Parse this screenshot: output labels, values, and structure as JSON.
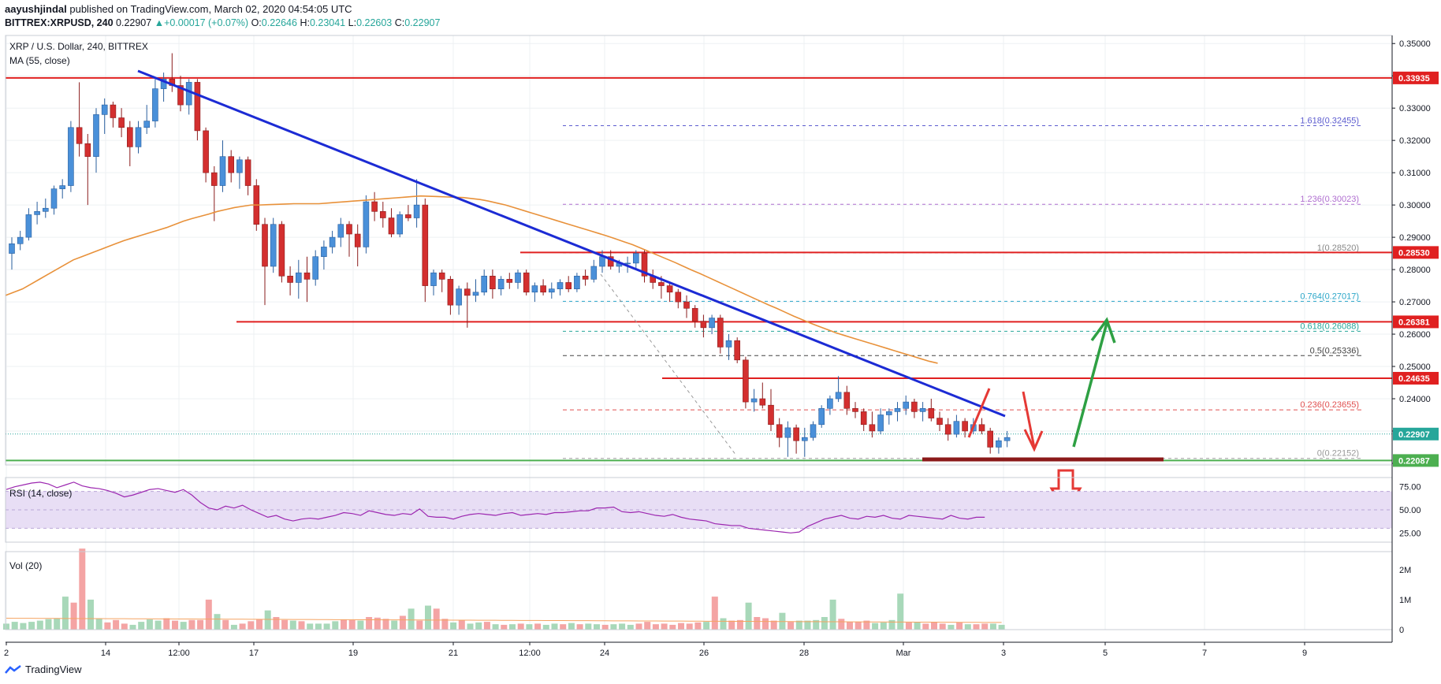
{
  "header": {
    "author": "aayushjindal",
    "published_text": " published on TradingView.com, March 02, 2020 04:54:05 UTC",
    "symbol": "BITTREX:XRPUSD, 240",
    "last": "0.22907",
    "change": "+0.00017 (+0.07%)",
    "open_label": "O:",
    "open": "0.22646",
    "high_label": "H:",
    "high": "0.23041",
    "low_label": "L:",
    "low": "0.22603",
    "close_label": "C:",
    "close": "0.22907"
  },
  "legend": {
    "title": "XRP / U.S. Dollar, 240, BITTREX",
    "ma": "MA (55, close)",
    "rsi": "RSI (14, close)",
    "vol": "Vol (20)"
  },
  "footer": {
    "brand": "TradingView",
    "logo_icon": "tradingview-logo-icon"
  },
  "colors": {
    "up": "#4a90d9",
    "down": "#d32f2f",
    "ma": "#e8913a",
    "trend": "#1c2bd4",
    "hline": "#e02020",
    "support": "#4caf50",
    "rsi_line": "#9c27b0",
    "rsi_band": "#e8def5"
  },
  "chart_data": {
    "type": "candlestick",
    "price_axis": {
      "ticks": [
        "0.35000",
        "0.34000",
        "0.33000",
        "0.32000",
        "0.31000",
        "0.30000",
        "0.29000",
        "0.28000",
        "0.27000",
        "0.26000",
        "0.25000",
        "0.24000",
        "0.23000",
        "0.22000"
      ],
      "ylim": [
        0.2195,
        0.3525
      ]
    },
    "time_axis": {
      "labels": [
        "2",
        "14",
        "12:00",
        "17",
        "19",
        "21",
        "12:00",
        "24",
        "26",
        "28",
        "Mar",
        "3",
        "5",
        "7",
        "9"
      ]
    },
    "price_labels": [
      {
        "value": "0.33935",
        "price": 0.33935,
        "color": "#e02020"
      },
      {
        "value": "0.28530",
        "price": 0.2853,
        "color": "#e02020"
      },
      {
        "value": "0.26381",
        "price": 0.26381,
        "color": "#e02020"
      },
      {
        "value": "0.24635",
        "price": 0.24635,
        "color": "#e02020"
      },
      {
        "value": "0.22907",
        "price": 0.22907,
        "color": "#26a69a"
      },
      {
        "value": "0.22087",
        "price": 0.22087,
        "color": "#4caf50"
      }
    ],
    "fib_levels": [
      {
        "label": "1.618(0.32455)",
        "price": 0.32455,
        "color": "#5c5ccf",
        "dash": "4,4"
      },
      {
        "label": "1.236(0.30023)",
        "price": 0.30023,
        "color": "#b06fd0",
        "dash": "4,4"
      },
      {
        "label": "1(0.28520)",
        "price": 0.2852,
        "color": "#888888",
        "dash": "4,4"
      },
      {
        "label": "0.764(0.27017)",
        "price": 0.27017,
        "color": "#2aa6c8",
        "dash": "4,4"
      },
      {
        "label": "0.618(0.26088)",
        "price": 0.26088,
        "color": "#26a69a",
        "dash": "4,4"
      },
      {
        "label": "0.5(0.25336)",
        "price": 0.25336,
        "color": "#444444",
        "dash": "5,4"
      },
      {
        "label": "0.236(0.23655)",
        "price": 0.23655,
        "color": "#e05050",
        "dash": "5,4"
      },
      {
        "label": "0(0.22152)",
        "price": 0.22152,
        "color": "#999999",
        "dash": "4,4"
      }
    ],
    "candles": [
      [
        0.285,
        0.29,
        0.28,
        0.288
      ],
      [
        0.288,
        0.292,
        0.286,
        0.29
      ],
      [
        0.29,
        0.299,
        0.289,
        0.297
      ],
      [
        0.297,
        0.301,
        0.294,
        0.298
      ],
      [
        0.298,
        0.302,
        0.296,
        0.299
      ],
      [
        0.299,
        0.306,
        0.297,
        0.305
      ],
      [
        0.305,
        0.308,
        0.302,
        0.306
      ],
      [
        0.306,
        0.326,
        0.304,
        0.324
      ],
      [
        0.324,
        0.338,
        0.315,
        0.319
      ],
      [
        0.319,
        0.322,
        0.3,
        0.315
      ],
      [
        0.315,
        0.33,
        0.31,
        0.328
      ],
      [
        0.328,
        0.333,
        0.322,
        0.331
      ],
      [
        0.331,
        0.332,
        0.324,
        0.327
      ],
      [
        0.327,
        0.33,
        0.321,
        0.324
      ],
      [
        0.324,
        0.326,
        0.312,
        0.318
      ],
      [
        0.318,
        0.326,
        0.316,
        0.324
      ],
      [
        0.324,
        0.331,
        0.322,
        0.326
      ],
      [
        0.326,
        0.339,
        0.324,
        0.336
      ],
      [
        0.336,
        0.341,
        0.332,
        0.339
      ],
      [
        0.339,
        0.347,
        0.335,
        0.337
      ],
      [
        0.337,
        0.34,
        0.329,
        0.331
      ],
      [
        0.331,
        0.339,
        0.328,
        0.338
      ],
      [
        0.338,
        0.339,
        0.32,
        0.323
      ],
      [
        0.323,
        0.324,
        0.307,
        0.31
      ],
      [
        0.31,
        0.312,
        0.295,
        0.306
      ],
      [
        0.306,
        0.32,
        0.304,
        0.315
      ],
      [
        0.315,
        0.317,
        0.307,
        0.31
      ],
      [
        0.31,
        0.315,
        0.305,
        0.314
      ],
      [
        0.314,
        0.315,
        0.303,
        0.306
      ],
      [
        0.306,
        0.308,
        0.292,
        0.294
      ],
      [
        0.294,
        0.296,
        0.269,
        0.281
      ],
      [
        0.281,
        0.296,
        0.279,
        0.294
      ],
      [
        0.294,
        0.295,
        0.276,
        0.278
      ],
      [
        0.278,
        0.281,
        0.272,
        0.276
      ],
      [
        0.276,
        0.283,
        0.271,
        0.279
      ],
      [
        0.279,
        0.284,
        0.27,
        0.277
      ],
      [
        0.277,
        0.286,
        0.275,
        0.284
      ],
      [
        0.284,
        0.289,
        0.28,
        0.287
      ],
      [
        0.287,
        0.292,
        0.285,
        0.29
      ],
      [
        0.29,
        0.296,
        0.287,
        0.294
      ],
      [
        0.294,
        0.295,
        0.284,
        0.291
      ],
      [
        0.291,
        0.294,
        0.281,
        0.287
      ],
      [
        0.287,
        0.303,
        0.285,
        0.301
      ],
      [
        0.301,
        0.304,
        0.295,
        0.298
      ],
      [
        0.298,
        0.301,
        0.293,
        0.296
      ],
      [
        0.296,
        0.299,
        0.29,
        0.291
      ],
      [
        0.291,
        0.298,
        0.29,
        0.297
      ],
      [
        0.297,
        0.3,
        0.295,
        0.296
      ],
      [
        0.296,
        0.308,
        0.293,
        0.3
      ],
      [
        0.3,
        0.302,
        0.27,
        0.275
      ],
      [
        0.275,
        0.28,
        0.272,
        0.279
      ],
      [
        0.279,
        0.28,
        0.273,
        0.277
      ],
      [
        0.277,
        0.278,
        0.266,
        0.269
      ],
      [
        0.269,
        0.275,
        0.266,
        0.274
      ],
      [
        0.274,
        0.276,
        0.262,
        0.272
      ],
      [
        0.272,
        0.277,
        0.27,
        0.273
      ],
      [
        0.273,
        0.28,
        0.272,
        0.278
      ],
      [
        0.278,
        0.28,
        0.271,
        0.274
      ],
      [
        0.274,
        0.278,
        0.272,
        0.277
      ],
      [
        0.277,
        0.279,
        0.274,
        0.276
      ],
      [
        0.276,
        0.28,
        0.274,
        0.279
      ],
      [
        0.279,
        0.28,
        0.272,
        0.273
      ],
      [
        0.273,
        0.276,
        0.27,
        0.275
      ],
      [
        0.275,
        0.277,
        0.272,
        0.273
      ],
      [
        0.273,
        0.276,
        0.271,
        0.274
      ],
      [
        0.274,
        0.277,
        0.272,
        0.276
      ],
      [
        0.276,
        0.278,
        0.273,
        0.274
      ],
      [
        0.274,
        0.279,
        0.273,
        0.278
      ],
      [
        0.278,
        0.28,
        0.275,
        0.277
      ],
      [
        0.277,
        0.283,
        0.276,
        0.281
      ],
      [
        0.281,
        0.286,
        0.279,
        0.284
      ],
      [
        0.284,
        0.286,
        0.28,
        0.281
      ],
      [
        0.281,
        0.283,
        0.279,
        0.282
      ],
      [
        0.282,
        0.284,
        0.279,
        0.282
      ],
      [
        0.282,
        0.286,
        0.28,
        0.285
      ],
      [
        0.285,
        0.286,
        0.276,
        0.278
      ],
      [
        0.278,
        0.28,
        0.274,
        0.276
      ],
      [
        0.276,
        0.278,
        0.271,
        0.275
      ],
      [
        0.275,
        0.276,
        0.27,
        0.273
      ],
      [
        0.273,
        0.274,
        0.268,
        0.27
      ],
      [
        0.27,
        0.272,
        0.265,
        0.268
      ],
      [
        0.268,
        0.269,
        0.262,
        0.264
      ],
      [
        0.264,
        0.266,
        0.259,
        0.262
      ],
      [
        0.262,
        0.266,
        0.26,
        0.265
      ],
      [
        0.265,
        0.266,
        0.254,
        0.256
      ],
      [
        0.256,
        0.26,
        0.252,
        0.258
      ],
      [
        0.258,
        0.259,
        0.251,
        0.252
      ],
      [
        0.252,
        0.253,
        0.237,
        0.239
      ],
      [
        0.239,
        0.243,
        0.236,
        0.24
      ],
      [
        0.24,
        0.245,
        0.237,
        0.238
      ],
      [
        0.238,
        0.243,
        0.23,
        0.232
      ],
      [
        0.232,
        0.234,
        0.225,
        0.228
      ],
      [
        0.228,
        0.233,
        0.222,
        0.231
      ],
      [
        0.231,
        0.232,
        0.223,
        0.227
      ],
      [
        0.227,
        0.231,
        0.222,
        0.228
      ],
      [
        0.228,
        0.233,
        0.227,
        0.232
      ],
      [
        0.232,
        0.238,
        0.231,
        0.237
      ],
      [
        0.237,
        0.241,
        0.235,
        0.24
      ],
      [
        0.24,
        0.247,
        0.239,
        0.242
      ],
      [
        0.242,
        0.244,
        0.235,
        0.237
      ],
      [
        0.237,
        0.239,
        0.234,
        0.236
      ],
      [
        0.236,
        0.237,
        0.23,
        0.232
      ],
      [
        0.232,
        0.236,
        0.228,
        0.23
      ],
      [
        0.23,
        0.237,
        0.229,
        0.235
      ],
      [
        0.235,
        0.237,
        0.232,
        0.236
      ],
      [
        0.236,
        0.239,
        0.233,
        0.237
      ],
      [
        0.237,
        0.241,
        0.235,
        0.239
      ],
      [
        0.239,
        0.24,
        0.234,
        0.236
      ],
      [
        0.236,
        0.239,
        0.233,
        0.237
      ],
      [
        0.237,
        0.24,
        0.233,
        0.234
      ],
      [
        0.234,
        0.236,
        0.23,
        0.232
      ],
      [
        0.232,
        0.234,
        0.227,
        0.229
      ],
      [
        0.229,
        0.235,
        0.228,
        0.233
      ],
      [
        0.233,
        0.234,
        0.228,
        0.23
      ],
      [
        0.23,
        0.234,
        0.229,
        0.232
      ],
      [
        0.232,
        0.234,
        0.229,
        0.23
      ],
      [
        0.23,
        0.231,
        0.223,
        0.225
      ],
      [
        0.225,
        0.228,
        0.223,
        0.227
      ],
      [
        0.227,
        0.23,
        0.225,
        0.228
      ]
    ],
    "ma_line": [
      0.272,
      0.273,
      0.274,
      0.2755,
      0.277,
      0.2785,
      0.28,
      0.2815,
      0.283,
      0.284,
      0.285,
      0.286,
      0.287,
      0.288,
      0.289,
      0.2898,
      0.2906,
      0.2914,
      0.2922,
      0.293,
      0.294,
      0.295,
      0.2958,
      0.2965,
      0.2972,
      0.298,
      0.2986,
      0.2992,
      0.2996,
      0.3,
      0.3,
      0.3001,
      0.3002,
      0.3003,
      0.3004,
      0.3004,
      0.3004,
      0.3004,
      0.3006,
      0.3008,
      0.301,
      0.3012,
      0.3014,
      0.3016,
      0.3018,
      0.302,
      0.3022,
      0.3024,
      0.3026,
      0.3028,
      0.3027,
      0.3026,
      0.3025,
      0.3024,
      0.3023,
      0.302,
      0.3017,
      0.3012,
      0.3006,
      0.3,
      0.2992,
      0.2984,
      0.2976,
      0.2968,
      0.296,
      0.2952,
      0.2944,
      0.2936,
      0.2928,
      0.292,
      0.2912,
      0.2904,
      0.2895,
      0.2886,
      0.2877,
      0.2866,
      0.2855,
      0.2844,
      0.2833,
      0.2822,
      0.281,
      0.2798,
      0.2787,
      0.2775,
      0.2763,
      0.2751,
      0.2739,
      0.2727,
      0.2715,
      0.2703,
      0.2691,
      0.268,
      0.2668,
      0.2656,
      0.2645,
      0.2634,
      0.2624,
      0.2614,
      0.2604,
      0.2596,
      0.2588,
      0.258,
      0.2572,
      0.2564,
      0.2556,
      0.2548,
      0.254,
      0.2532,
      0.2524,
      0.2516,
      0.251
    ],
    "rsi": {
      "ticks": [
        "75.00",
        "50.00",
        "25.00"
      ],
      "upper": 70,
      "lower": 30,
      "ylim": [
        15,
        85
      ],
      "values": [
        72,
        75,
        77,
        79,
        80,
        78,
        74,
        77,
        80,
        76,
        74,
        73,
        71,
        68,
        64,
        66,
        69,
        72,
        73,
        71,
        69,
        72,
        66,
        58,
        52,
        50,
        54,
        52,
        55,
        50,
        46,
        42,
        44,
        40,
        38,
        40,
        41,
        40,
        42,
        44,
        47,
        46,
        44,
        49,
        47,
        45,
        44,
        46,
        45,
        51,
        43,
        42,
        42,
        40,
        43,
        45,
        46,
        45,
        44,
        46,
        47,
        44,
        45,
        46,
        45,
        47,
        47,
        48,
        49,
        49,
        52,
        52,
        53,
        48,
        47,
        48,
        46,
        44,
        43,
        45,
        42,
        40,
        39,
        38,
        35,
        34,
        33,
        33,
        30,
        29,
        28,
        27,
        26,
        25,
        26,
        32,
        36,
        40,
        42,
        44,
        41,
        40,
        43,
        42,
        44,
        41,
        40,
        44,
        43,
        42,
        41,
        40,
        44,
        41,
        40,
        42,
        42
      ]
    },
    "volume": {
      "ticks": [
        "2M",
        "1M",
        "0"
      ],
      "ylim": [
        0,
        2600000
      ],
      "values": [
        200,
        260,
        220,
        260,
        300,
        350,
        380,
        1100,
        900,
        2700,
        1000,
        380,
        240,
        320,
        200,
        160,
        260,
        340,
        300,
        380,
        300,
        260,
        320,
        320,
        1000,
        520,
        320,
        160,
        200,
        280,
        340,
        640,
        420,
        320,
        300,
        280,
        200,
        200,
        200,
        280,
        340,
        320,
        300,
        420,
        400,
        360,
        300,
        460,
        700,
        300,
        800,
        700,
        360,
        240,
        320,
        200,
        240,
        260,
        180,
        160,
        180,
        200,
        180,
        200,
        160,
        200,
        180,
        220,
        180,
        200,
        180,
        160,
        180,
        200,
        160,
        200,
        260,
        180,
        200,
        160,
        220,
        200,
        240,
        260,
        1100,
        380,
        300,
        320,
        900,
        420,
        380,
        300,
        560,
        260,
        300,
        300,
        320,
        420,
        1000,
        360,
        260,
        260,
        300,
        220,
        240,
        320,
        1200,
        240,
        260,
        200,
        260,
        200,
        160,
        240,
        180,
        180,
        200,
        200,
        160
      ]
    }
  }
}
